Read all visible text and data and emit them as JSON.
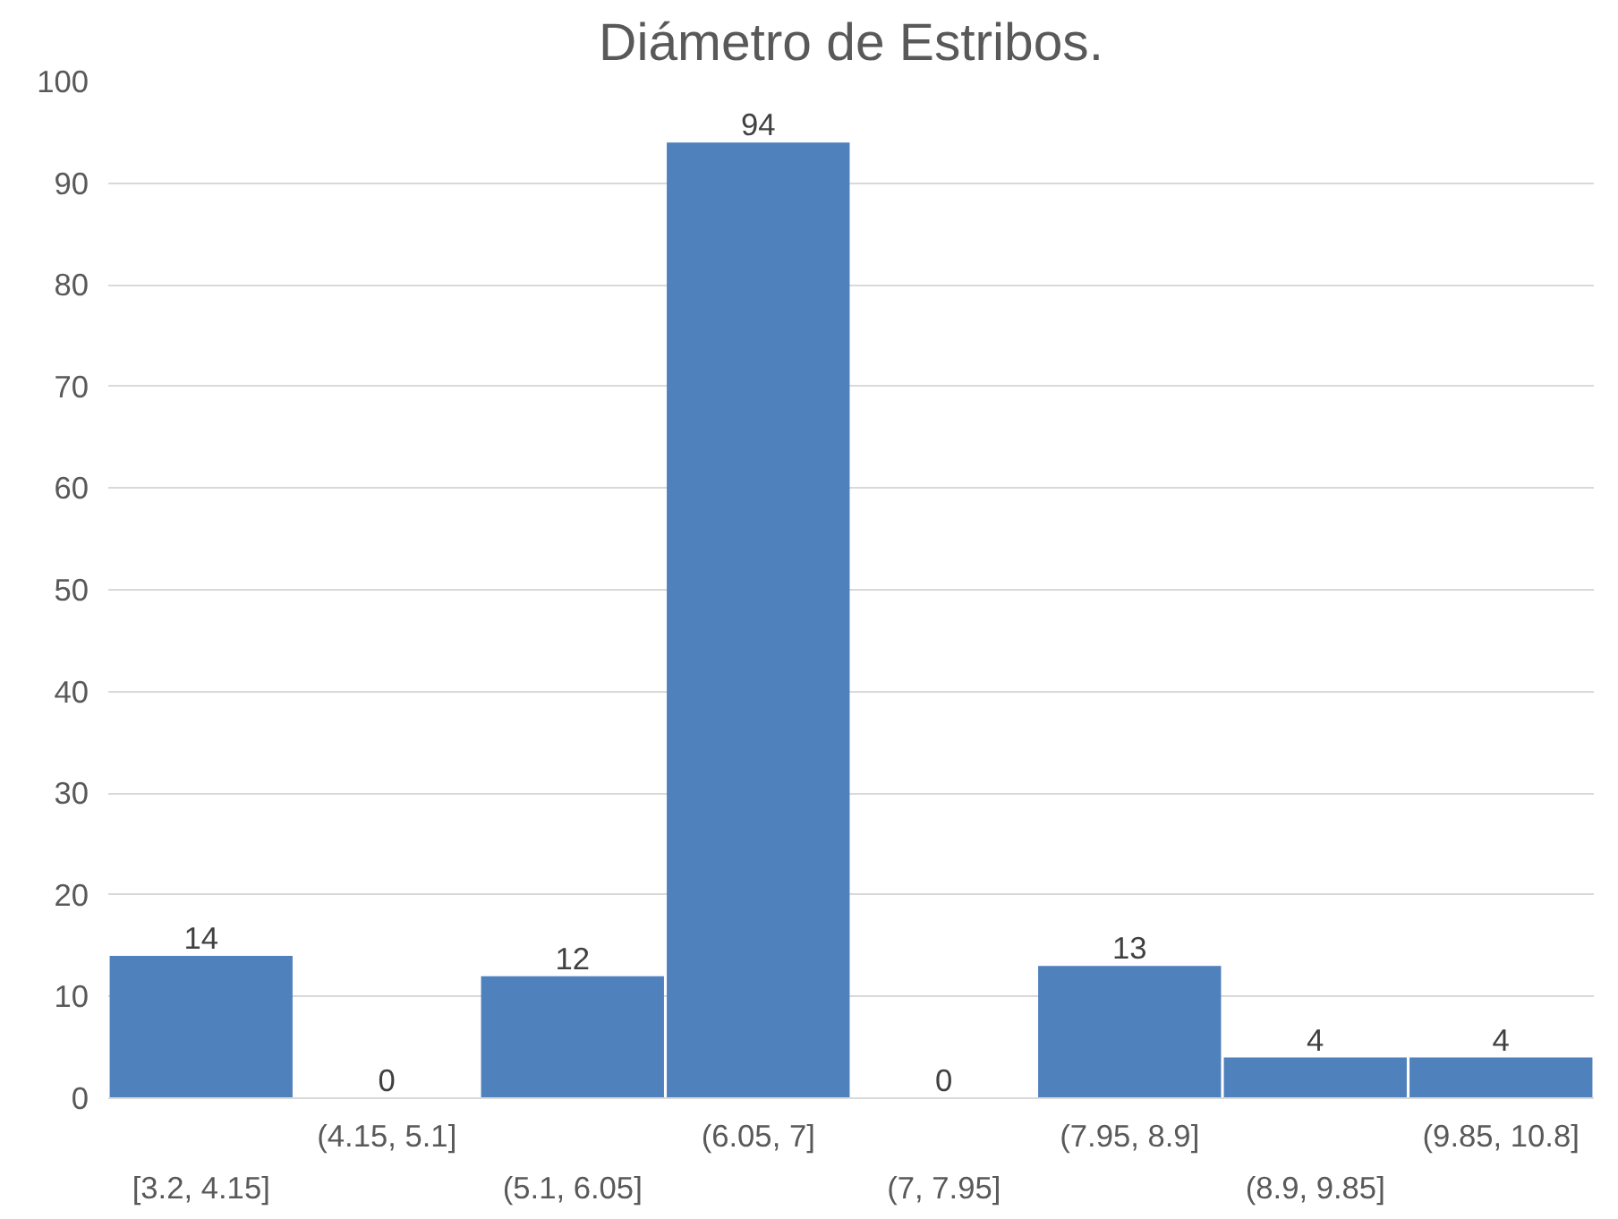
{
  "chart_data": {
    "type": "bar",
    "title": "Diámetro de Estribos.",
    "categories": [
      "[3.2, 4.15]",
      "(4.15, 5.1]",
      "(5.1, 6.05]",
      "(6.05, 7]",
      "(7, 7.95]",
      "(7.95, 8.9]",
      "(8.9, 9.85]",
      "(9.85, 10.8]"
    ],
    "values": [
      14,
      0,
      12,
      94,
      0,
      13,
      4,
      4
    ],
    "color": "#4f81bd",
    "ylim": [
      0,
      100
    ],
    "yticks": [
      0,
      10,
      20,
      30,
      40,
      50,
      60,
      70,
      80,
      90,
      100
    ],
    "grid": "y",
    "data_labels": true
  }
}
